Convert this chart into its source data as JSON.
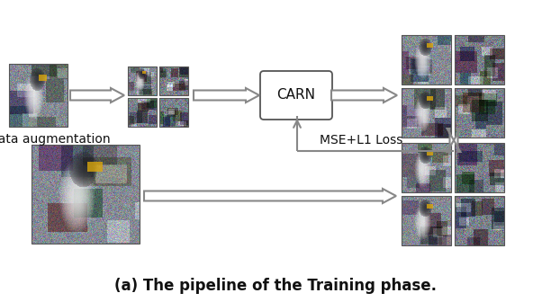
{
  "title": "(a) The pipeline of the Training phase.",
  "title_fontsize": 12,
  "title_fontweight": "bold",
  "bg_color": "#ffffff",
  "text_color": "#111111",
  "carn_label": "CARN",
  "loss_label": "MSE+L1 Loss",
  "data_aug_label": "Data augmentation",
  "arrow_face": "#e8e8e8",
  "arrow_edge": "#888888",
  "fig_w": 6.12,
  "fig_h": 3.36,
  "dpi": 100
}
